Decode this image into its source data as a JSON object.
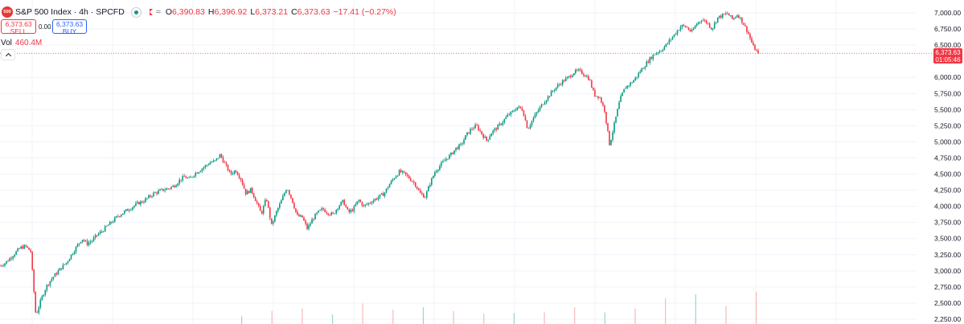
{
  "header": {
    "logo_text": "500",
    "title": "S&P 500 Index · 4h · SPCFD",
    "ohlc": {
      "o_label": "O",
      "o_value": "6,390.83",
      "h_label": "H",
      "h_value": "6,396.92",
      "l_label": "L",
      "l_value": "6,373.21",
      "c_label": "C",
      "c_value": "6,373.63",
      "change": "−17.41 (−0.27%)"
    }
  },
  "trade": {
    "sell_price": "6,373.63",
    "sell_label": "SELL",
    "spread": "0.00",
    "buy_price": "6,373.63",
    "buy_label": "BUY"
  },
  "volume": {
    "label": "Vol",
    "value": "460.4M"
  },
  "last_price": {
    "price": "6,373.63",
    "countdown": "01:05:46"
  },
  "colors": {
    "up": "#089981",
    "down": "#f23645",
    "grid": "#f0f3fa",
    "axis_text": "#131722"
  },
  "chart_data": {
    "type": "candlestick",
    "ylim": [
      2200,
      7050
    ],
    "y_ticks": [
      "7,000.00",
      "6,750.00",
      "6,500.00",
      "6,000.00",
      "5,750.00",
      "5,500.00",
      "5,250.00",
      "5,000.00",
      "4,750.00",
      "4,500.00",
      "4,250.00",
      "4,000.00",
      "3,750.00",
      "3,500.00",
      "3,250.00",
      "3,000.00",
      "2,750.00",
      "2,500.00",
      "2,250.00"
    ],
    "last_price": 6373.63,
    "trend": [
      3080,
      3120,
      3200,
      3280,
      3360,
      3380,
      3300,
      2300,
      2550,
      2750,
      2870,
      2960,
      3050,
      3130,
      3260,
      3380,
      3500,
      3420,
      3470,
      3560,
      3620,
      3700,
      3770,
      3850,
      3900,
      3950,
      4000,
      4050,
      4080,
      4140,
      4200,
      4230,
      4260,
      4280,
      4320,
      4400,
      4460,
      4420,
      4510,
      4560,
      4620,
      4680,
      4700,
      4800,
      4640,
      4500,
      4560,
      4430,
      4200,
      4260,
      4080,
      3880,
      4130,
      3700,
      3920,
      4100,
      4300,
      4100,
      3850,
      3830,
      3650,
      3800,
      3900,
      3960,
      3900,
      3870,
      4000,
      4080,
      3900,
      3960,
      4100,
      4000,
      4050,
      4100,
      4150,
      4200,
      4340,
      4450,
      4540,
      4500,
      4430,
      4350,
      4200,
      4150,
      4370,
      4550,
      4640,
      4730,
      4800,
      4900,
      4950,
      5100,
      5200,
      5250,
      5130,
      5020,
      5150,
      5220,
      5300,
      5400,
      5460,
      5540,
      5500,
      5200,
      5350,
      5480,
      5600,
      5700,
      5800,
      5880,
      5950,
      6000,
      6080,
      6100,
      6050,
      5980,
      5730,
      5700,
      5500,
      4950,
      5300,
      5650,
      5840,
      5900,
      5980,
      6100,
      6200,
      6300,
      6380,
      6420,
      6500,
      6600,
      6700,
      6800,
      6780,
      6700,
      6830,
      6900,
      6850,
      6750,
      6920,
      6960,
      6990,
      6900,
      6980,
      6850,
      6700,
      6480,
      6373.63
    ],
    "volume_spikes": [
      0.05,
      0.25,
      0.35,
      0.12,
      0.55,
      0.3,
      0.4,
      0.25,
      0.15,
      0.18,
      0.2,
      0.4,
      0.2,
      0.35,
      0.75,
      0.9,
      0.45,
      1.0
    ]
  }
}
